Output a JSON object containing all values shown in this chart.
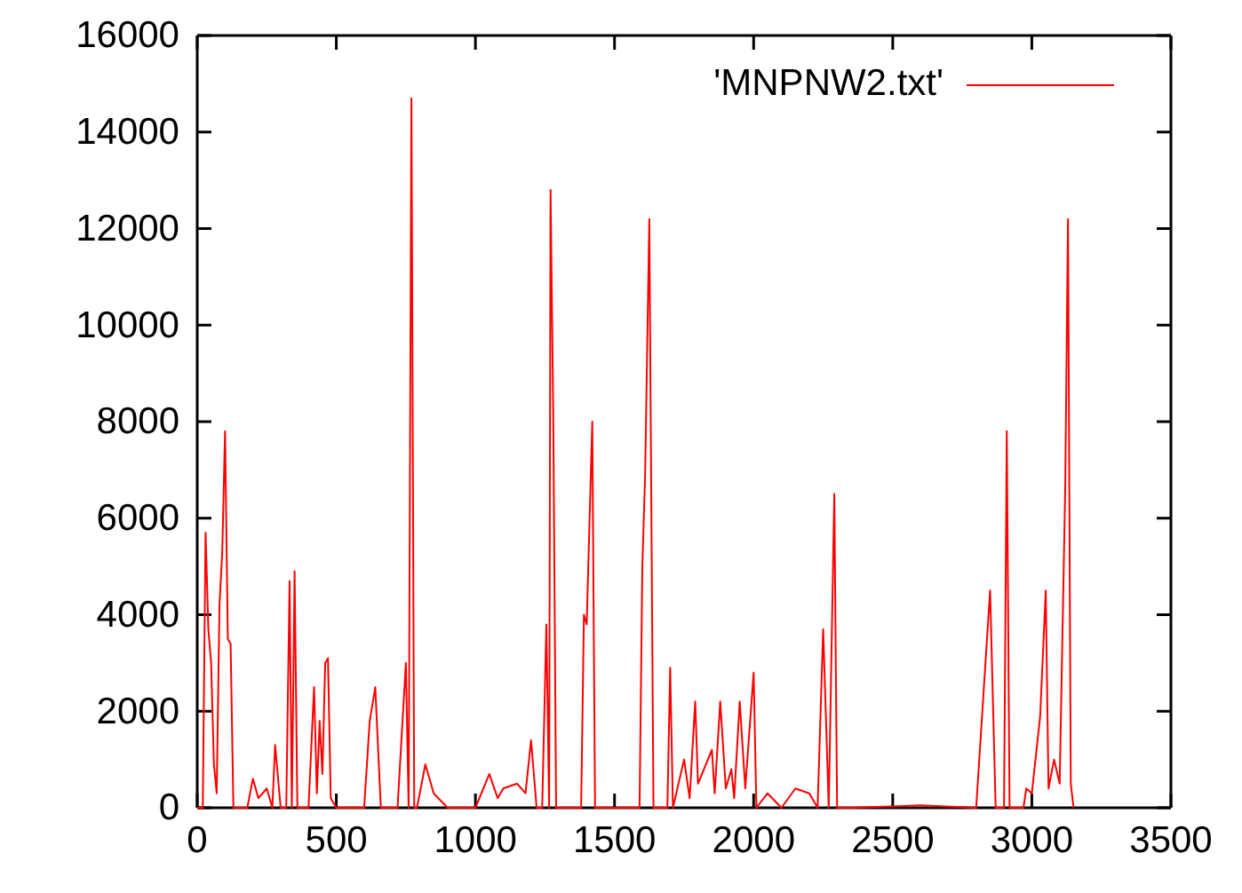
{
  "chart_data": {
    "type": "line",
    "xlim": [
      0,
      3500
    ],
    "ylim": [
      0,
      16000
    ],
    "xticks": [
      0,
      500,
      1000,
      1500,
      2000,
      2500,
      3000,
      3500
    ],
    "yticks": [
      0,
      2000,
      4000,
      6000,
      8000,
      10000,
      12000,
      14000,
      16000
    ],
    "grid": false,
    "legend": "top right",
    "series": [
      {
        "name": "'MNPNW2.txt'",
        "color": "#ff0000",
        "x": [
          0,
          20,
          30,
          40,
          50,
          60,
          70,
          80,
          90,
          100,
          110,
          120,
          130,
          140,
          180,
          200,
          220,
          250,
          270,
          280,
          300,
          320,
          332,
          340,
          350,
          360,
          400,
          420,
          430,
          440,
          450,
          460,
          470,
          480,
          500,
          550,
          600,
          620,
          640,
          660,
          720,
          750,
          760,
          770,
          780,
          790,
          820,
          850,
          900,
          1000,
          1050,
          1080,
          1100,
          1150,
          1180,
          1200,
          1220,
          1240,
          1255,
          1265,
          1270,
          1280,
          1290,
          1330,
          1380,
          1390,
          1400,
          1420,
          1430,
          1500,
          1590,
          1600,
          1610,
          1625,
          1640,
          1690,
          1700,
          1710,
          1750,
          1770,
          1790,
          1800,
          1850,
          1860,
          1880,
          1900,
          1920,
          1930,
          1950,
          1970,
          2000,
          2010,
          2050,
          2100,
          2150,
          2200,
          2230,
          2250,
          2270,
          2290,
          2300,
          2350,
          2600,
          2800,
          2850,
          2870,
          2900,
          2910,
          2920,
          2970,
          2980,
          3000,
          3030,
          3050,
          3060,
          3080,
          3100,
          3120,
          3130,
          3140,
          3150
        ],
        "values": [
          0,
          0,
          5700,
          3700,
          3000,
          900,
          300,
          4200,
          5300,
          7800,
          3500,
          3400,
          0,
          0,
          0,
          600,
          200,
          400,
          0,
          1300,
          0,
          0,
          4700,
          0,
          4900,
          0,
          0,
          2500,
          300,
          1800,
          700,
          3000,
          3100,
          200,
          0,
          0,
          0,
          1800,
          2500,
          0,
          0,
          3000,
          0,
          14700,
          0,
          0,
          900,
          300,
          0,
          0,
          700,
          200,
          400,
          500,
          300,
          1400,
          0,
          0,
          3800,
          0,
          12800,
          8000,
          0,
          0,
          0,
          4000,
          3800,
          8000,
          0,
          0,
          0,
          5000,
          6900,
          12200,
          0,
          0,
          2900,
          0,
          1000,
          200,
          2200,
          500,
          1200,
          300,
          2200,
          400,
          800,
          200,
          2200,
          400,
          2800,
          0,
          300,
          0,
          400,
          300,
          0,
          3700,
          0,
          6500,
          0,
          0,
          50,
          0,
          4500,
          0,
          0,
          7800,
          0,
          0,
          400,
          300,
          1900,
          4500,
          400,
          1000,
          500,
          6600,
          12200,
          500,
          0
        ]
      }
    ]
  }
}
